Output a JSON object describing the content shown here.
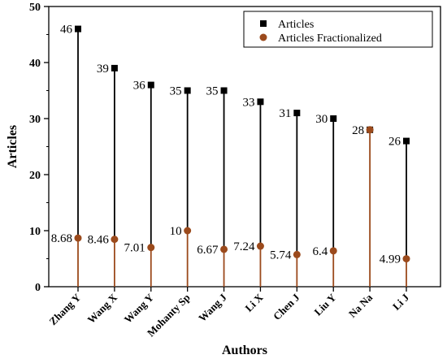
{
  "chart_data": {
    "type": "scatter",
    "xlabel": "Authors",
    "ylabel": "Articles",
    "ylim": [
      0,
      50
    ],
    "yticks": [
      0,
      10,
      20,
      30,
      40,
      50
    ],
    "grid": false,
    "legend_position": "top-right",
    "categories": [
      "Zhang Y",
      "Wang X",
      "Wang Y",
      "Mohanty Sp",
      "Wang J",
      "Li X",
      "Chen J",
      "Liu Y",
      "Na Na",
      "Li J"
    ],
    "series": [
      {
        "name": "Articles",
        "marker": "square",
        "color": "#000000",
        "values": [
          46,
          39,
          36,
          35,
          35,
          33,
          31,
          30,
          28,
          26
        ],
        "labels": [
          "46",
          "39",
          "36",
          "35",
          "35",
          "33",
          "31",
          "30",
          "28",
          "26"
        ]
      },
      {
        "name": "Articles Fractionalized",
        "marker": "circle",
        "color": "#9b4a1c",
        "values": [
          8.68,
          8.46,
          7.01,
          10,
          6.67,
          7.24,
          5.74,
          6.4,
          28,
          4.99
        ],
        "labels": [
          "8.68",
          "8.46",
          "7.01",
          "10",
          "6.67",
          "7.24",
          "5.74",
          "6.4",
          "",
          "4.99"
        ]
      }
    ]
  }
}
